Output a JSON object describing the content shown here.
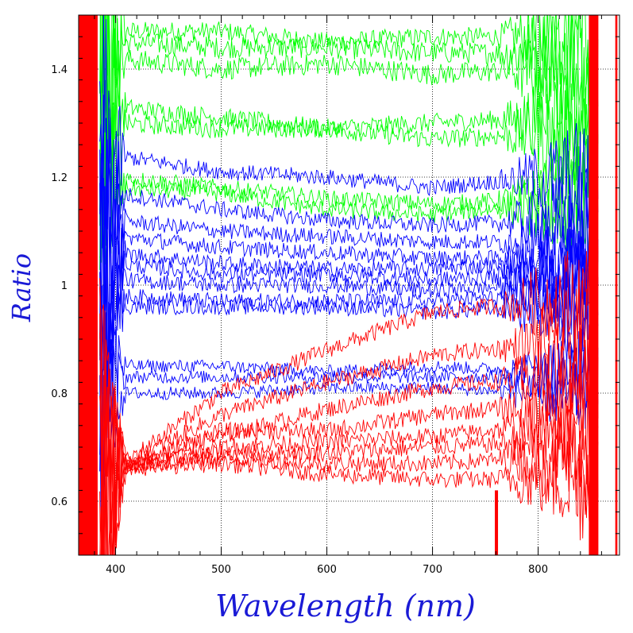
{
  "chart_data": {
    "type": "line",
    "xlabel": "Wavelength (nm)",
    "ylabel": "Ratio",
    "xlim": [
      365,
      877
    ],
    "ylim": [
      0.5,
      1.5
    ],
    "x_ticks": [
      400,
      500,
      600,
      700,
      800
    ],
    "y_ticks": [
      0.6,
      0.8,
      1,
      1.2,
      1.4
    ],
    "x_tick_labels": [
      "400",
      "500",
      "600",
      "700",
      "800"
    ],
    "y_tick_labels": [
      "0.6",
      "0.8",
      "1",
      "1.2",
      "1.4"
    ],
    "grid": true,
    "grid_style": "dotted",
    "noise_model": {
      "x_start": 385,
      "x_end": 857,
      "step": 1.2,
      "edge_blue": 410,
      "edge_red": 760
    },
    "series_groups": [
      {
        "color": "#00ff00",
        "series": [
          {
            "values": [
              [
                400,
                1.47
              ],
              [
                500,
                1.47
              ],
              [
                600,
                1.45
              ],
              [
                700,
                1.46
              ],
              [
                800,
                1.46
              ]
            ],
            "noise": 0.018
          },
          {
            "values": [
              [
                400,
                1.45
              ],
              [
                500,
                1.44
              ],
              [
                600,
                1.44
              ],
              [
                700,
                1.43
              ],
              [
                800,
                1.43
              ]
            ],
            "noise": 0.02
          },
          {
            "values": [
              [
                400,
                1.42
              ],
              [
                500,
                1.4
              ],
              [
                600,
                1.41
              ],
              [
                700,
                1.39
              ],
              [
                800,
                1.4
              ]
            ],
            "noise": 0.02
          },
          {
            "values": [
              [
                400,
                1.33
              ],
              [
                500,
                1.31
              ],
              [
                600,
                1.29
              ],
              [
                700,
                1.3
              ],
              [
                800,
                1.31
              ]
            ],
            "noise": 0.018
          },
          {
            "values": [
              [
                400,
                1.3
              ],
              [
                500,
                1.29
              ],
              [
                600,
                1.29
              ],
              [
                700,
                1.27
              ],
              [
                800,
                1.28
              ]
            ],
            "noise": 0.018
          },
          {
            "values": [
              [
                400,
                1.2
              ],
              [
                500,
                1.18
              ],
              [
                600,
                1.16
              ],
              [
                700,
                1.15
              ],
              [
                800,
                1.16
              ]
            ],
            "noise": 0.016
          },
          {
            "values": [
              [
                400,
                1.18
              ],
              [
                500,
                1.17
              ],
              [
                600,
                1.14
              ],
              [
                700,
                1.13
              ],
              [
                800,
                1.15
              ]
            ],
            "noise": 0.016
          }
        ]
      },
      {
        "color": "#0000ff",
        "series": [
          {
            "values": [
              [
                400,
                1.24
              ],
              [
                500,
                1.21
              ],
              [
                600,
                1.2
              ],
              [
                700,
                1.18
              ],
              [
                800,
                1.2
              ]
            ],
            "noise": 0.015
          },
          {
            "values": [
              [
                400,
                1.17
              ],
              [
                500,
                1.14
              ],
              [
                600,
                1.12
              ],
              [
                700,
                1.11
              ],
              [
                800,
                1.12
              ]
            ],
            "noise": 0.015
          },
          {
            "values": [
              [
                400,
                1.12
              ],
              [
                500,
                1.1
              ],
              [
                600,
                1.09
              ],
              [
                700,
                1.08
              ],
              [
                800,
                1.08
              ]
            ],
            "noise": 0.015
          },
          {
            "values": [
              [
                400,
                1.09
              ],
              [
                500,
                1.07
              ],
              [
                600,
                1.06
              ],
              [
                700,
                1.05
              ],
              [
                800,
                1.05
              ]
            ],
            "noise": 0.015
          },
          {
            "values": [
              [
                400,
                1.06
              ],
              [
                500,
                1.04
              ],
              [
                600,
                1.03
              ],
              [
                700,
                1.03
              ],
              [
                800,
                1.04
              ]
            ],
            "noise": 0.015
          },
          {
            "values": [
              [
                400,
                1.04
              ],
              [
                500,
                1.02
              ],
              [
                600,
                1.02
              ],
              [
                700,
                1.01
              ],
              [
                800,
                1.02
              ]
            ],
            "noise": 0.015
          },
          {
            "values": [
              [
                400,
                1.01
              ],
              [
                500,
                1.0
              ],
              [
                600,
                1.0
              ],
              [
                700,
                0.99
              ],
              [
                800,
                1.0
              ]
            ],
            "noise": 0.015
          },
          {
            "values": [
              [
                400,
                0.98
              ],
              [
                500,
                0.97
              ],
              [
                600,
                0.97
              ],
              [
                700,
                0.97
              ],
              [
                800,
                0.98
              ]
            ],
            "noise": 0.015
          },
          {
            "values": [
              [
                400,
                0.96
              ],
              [
                500,
                0.96
              ],
              [
                600,
                0.96
              ],
              [
                700,
                0.95
              ],
              [
                800,
                0.96
              ]
            ],
            "noise": 0.015
          },
          {
            "values": [
              [
                400,
                0.85
              ],
              [
                500,
                0.85
              ],
              [
                600,
                0.84
              ],
              [
                700,
                0.85
              ],
              [
                800,
                0.84
              ]
            ],
            "noise": 0.012
          },
          {
            "values": [
              [
                400,
                0.83
              ],
              [
                500,
                0.83
              ],
              [
                600,
                0.83
              ],
              [
                700,
                0.83
              ],
              [
                800,
                0.83
              ]
            ],
            "noise": 0.012
          },
          {
            "values": [
              [
                400,
                0.8
              ],
              [
                500,
                0.8
              ],
              [
                600,
                0.81
              ],
              [
                700,
                0.81
              ],
              [
                800,
                0.8
              ]
            ],
            "noise": 0.012
          }
        ]
      },
      {
        "color": "#ff0000",
        "series": [
          {
            "values": [
              [
                400,
                0.66
              ],
              [
                500,
                0.8
              ],
              [
                600,
                0.88
              ],
              [
                700,
                0.95
              ],
              [
                800,
                0.97
              ]
            ],
            "noise": 0.016
          },
          {
            "values": [
              [
                400,
                0.66
              ],
              [
                500,
                0.76
              ],
              [
                600,
                0.82
              ],
              [
                700,
                0.87
              ],
              [
                800,
                0.89
              ]
            ],
            "noise": 0.016
          },
          {
            "values": [
              [
                400,
                0.66
              ],
              [
                500,
                0.72
              ],
              [
                600,
                0.77
              ],
              [
                700,
                0.81
              ],
              [
                800,
                0.83
              ]
            ],
            "noise": 0.016
          },
          {
            "values": [
              [
                400,
                0.66
              ],
              [
                500,
                0.73
              ],
              [
                600,
                0.73
              ],
              [
                700,
                0.76
              ],
              [
                800,
                0.78
              ]
            ],
            "noise": 0.016
          },
          {
            "values": [
              [
                400,
                0.66
              ],
              [
                500,
                0.7
              ],
              [
                600,
                0.71
              ],
              [
                700,
                0.72
              ],
              [
                800,
                0.74
              ]
            ],
            "noise": 0.016
          },
          {
            "values": [
              [
                400,
                0.66
              ],
              [
                500,
                0.69
              ],
              [
                600,
                0.69
              ],
              [
                700,
                0.7
              ],
              [
                800,
                0.71
              ]
            ],
            "noise": 0.016
          },
          {
            "values": [
              [
                400,
                0.66
              ],
              [
                500,
                0.68
              ],
              [
                600,
                0.67
              ],
              [
                700,
                0.67
              ],
              [
                800,
                0.68
              ]
            ],
            "noise": 0.016
          },
          {
            "values": [
              [
                400,
                0.66
              ],
              [
                500,
                0.67
              ],
              [
                600,
                0.65
              ],
              [
                700,
                0.64
              ],
              [
                800,
                0.64
              ]
            ],
            "noise": 0.016
          }
        ]
      }
    ],
    "edge_bands": [
      {
        "color": "#ff0000",
        "x": [
          365,
          383
        ],
        "y": [
          0.5,
          1.5
        ]
      },
      {
        "color": "#ff0000",
        "x": [
          759,
          762
        ],
        "y": [
          0.5,
          0.62
        ]
      },
      {
        "color": "#ff0000",
        "x": [
          848,
          857
        ],
        "y": [
          0.5,
          1.5
        ]
      },
      {
        "color": "#ff0000",
        "x": [
          873,
          875
        ],
        "y": [
          0.5,
          1.5
        ]
      }
    ]
  }
}
